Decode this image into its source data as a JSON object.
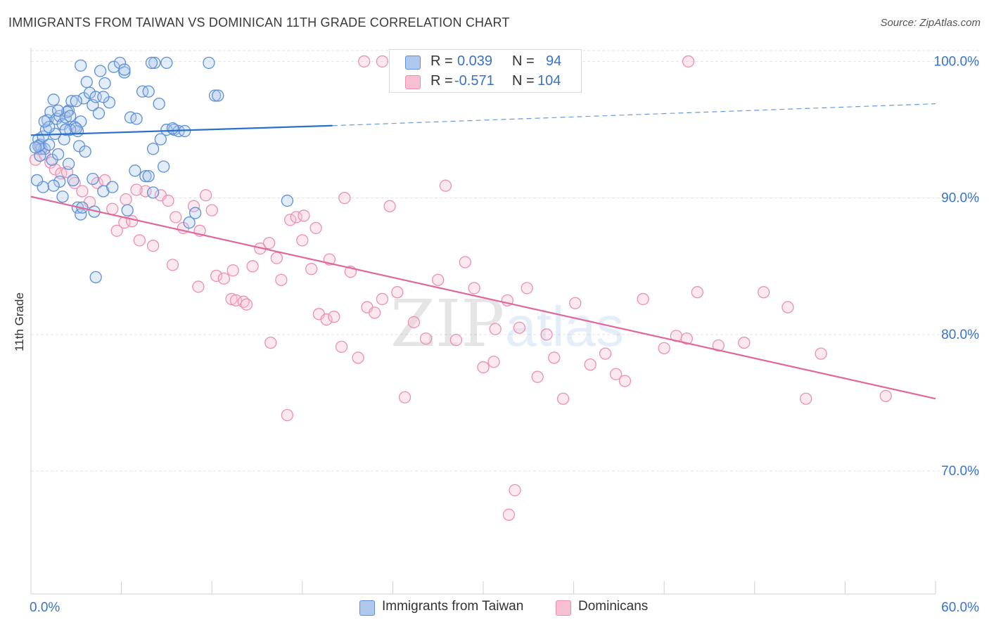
{
  "header": {
    "title": "IMMIGRANTS FROM TAIWAN VS DOMINICAN 11TH GRADE CORRELATION CHART",
    "source": "Source: ZipAtlas.com"
  },
  "legend": {
    "r_label": "R =",
    "n_label": "N =",
    "series": [
      {
        "r": "0.039",
        "n": "94"
      },
      {
        "r": "-0.571",
        "n": "104"
      }
    ]
  },
  "bottom_legend": [
    "Immigrants from Taiwan",
    "Dominicans"
  ],
  "colors": {
    "taiwan_fill": "#aec8ee",
    "taiwan_stroke": "#5b8fd6",
    "taiwan_line": "#2b6fcc",
    "dom_fill": "#f6bfd2",
    "dom_stroke": "#ec8fb0",
    "dom_line": "#e0679a",
    "axis_text": "#3a72c9",
    "grid": "#e4e4e4"
  },
  "watermark": {
    "zip": "ZIP",
    "atlas": "atlas"
  },
  "chart_data": {
    "type": "scatter",
    "title": "IMMIGRANTS FROM TAIWAN VS DOMINICAN 11TH GRADE CORRELATION CHART",
    "xlabel": "",
    "ylabel": "11th Grade",
    "xlim": [
      0,
      60
    ],
    "ylim": [
      61,
      101
    ],
    "x_tick_labels": [
      "0.0%",
      "60.0%"
    ],
    "y_ticks": [
      70,
      80,
      90,
      100
    ],
    "y_tick_labels": [
      "70.0%",
      "80.0%",
      "90.0%",
      "100.0%"
    ],
    "grid": true,
    "series": [
      {
        "name": "Immigrants from Taiwan",
        "R": 0.039,
        "N": 94,
        "trend": {
          "x0": 0,
          "y0": 94.6,
          "x1": 20,
          "y1": 95.3,
          "dash_x1": 60,
          "dash_y1": 96.9
        },
        "points": [
          [
            0.5,
            94.3
          ],
          [
            0.6,
            93.9
          ],
          [
            0.7,
            93.6
          ],
          [
            0.8,
            94.5
          ],
          [
            1.0,
            95.0
          ],
          [
            1.1,
            95.7
          ],
          [
            1.3,
            96.3
          ],
          [
            1.5,
            97.2
          ],
          [
            1.7,
            95.8
          ],
          [
            1.9,
            96.0
          ],
          [
            2.1,
            95.4
          ],
          [
            2.3,
            95.9
          ],
          [
            2.5,
            96.4
          ],
          [
            2.7,
            97.1
          ],
          [
            2.9,
            95.2
          ],
          [
            3.1,
            94.9
          ],
          [
            3.3,
            95.6
          ],
          [
            3.5,
            97.3
          ],
          [
            3.7,
            98.5
          ],
          [
            3.9,
            97.7
          ],
          [
            4.1,
            96.8
          ],
          [
            4.3,
            97.4
          ],
          [
            4.6,
            99.3
          ],
          [
            4.9,
            98.4
          ],
          [
            5.2,
            97.0
          ],
          [
            5.5,
            99.6
          ],
          [
            5.9,
            99.9
          ],
          [
            6.2,
            99.2
          ],
          [
            6.6,
            95.9
          ],
          [
            7.0,
            95.8
          ],
          [
            7.4,
            97.8
          ],
          [
            7.8,
            97.8
          ],
          [
            8.2,
            99.9
          ],
          [
            8.5,
            96.9
          ],
          [
            9.0,
            95.0
          ],
          [
            9.5,
            95.0
          ],
          [
            9.8,
            94.9
          ],
          [
            10.2,
            94.9
          ],
          [
            6.2,
            99.4
          ],
          [
            3.3,
            99.7
          ],
          [
            8.0,
            99.9
          ],
          [
            9.0,
            99.9
          ],
          [
            11.8,
            99.9
          ],
          [
            12.2,
            97.5
          ],
          [
            12.4,
            97.5
          ],
          [
            0.9,
            93.6
          ],
          [
            1.4,
            92.8
          ],
          [
            1.8,
            93.2
          ],
          [
            2.6,
            95.0
          ],
          [
            3.2,
            93.8
          ],
          [
            3.6,
            93.4
          ],
          [
            4.8,
            97.4
          ],
          [
            1.2,
            93.9
          ],
          [
            2.2,
            94.3
          ],
          [
            3.0,
            95.1
          ],
          [
            2.4,
            96.3
          ],
          [
            1.6,
            94.7
          ],
          [
            4.5,
            96.2
          ],
          [
            6.9,
            92.0
          ],
          [
            7.6,
            91.6
          ],
          [
            8.1,
            93.6
          ],
          [
            8.6,
            94.3
          ],
          [
            8.8,
            92.3
          ],
          [
            9.4,
            95.1
          ],
          [
            4.1,
            91.4
          ],
          [
            4.8,
            90.5
          ],
          [
            5.4,
            90.8
          ],
          [
            4.2,
            89.0
          ],
          [
            3.1,
            89.3
          ],
          [
            3.3,
            88.8
          ],
          [
            2.1,
            90.1
          ],
          [
            1.9,
            91.2
          ],
          [
            2.8,
            91.3
          ],
          [
            1.5,
            90.9
          ],
          [
            0.8,
            90.8
          ],
          [
            0.4,
            91.3
          ],
          [
            0.6,
            93.1
          ],
          [
            0.5,
            93.8
          ],
          [
            1.2,
            95.2
          ],
          [
            1.8,
            96.4
          ],
          [
            2.6,
            96.0
          ],
          [
            3.0,
            97.1
          ],
          [
            0.9,
            95.6
          ],
          [
            2.3,
            95.0
          ],
          [
            2.5,
            92.5
          ],
          [
            3.4,
            89.3
          ],
          [
            6.4,
            89.1
          ],
          [
            7.8,
            91.6
          ],
          [
            8.1,
            90.4
          ],
          [
            10.9,
            88.9
          ],
          [
            10.5,
            88.2
          ],
          [
            17.0,
            89.8
          ],
          [
            4.3,
            84.2
          ],
          [
            0.3,
            93.7
          ]
        ]
      },
      {
        "name": "Dominicans",
        "R": -0.571,
        "N": 104,
        "trend": {
          "x0": 0,
          "y0": 90.1,
          "x1": 60,
          "y1": 75.3
        },
        "points": [
          [
            0.3,
            92.8
          ],
          [
            0.6,
            93.6
          ],
          [
            0.9,
            93.2
          ],
          [
            1.3,
            92.6
          ],
          [
            1.6,
            92.1
          ],
          [
            2.0,
            91.8
          ],
          [
            2.4,
            91.9
          ],
          [
            2.9,
            91.1
          ],
          [
            3.4,
            90.5
          ],
          [
            3.9,
            89.7
          ],
          [
            4.4,
            91.1
          ],
          [
            4.9,
            91.3
          ],
          [
            5.4,
            89.2
          ],
          [
            5.7,
            87.6
          ],
          [
            6.2,
            88.2
          ],
          [
            6.7,
            88.3
          ],
          [
            7.2,
            86.9
          ],
          [
            7.6,
            90.5
          ],
          [
            8.1,
            86.5
          ],
          [
            8.6,
            90.2
          ],
          [
            9.1,
            89.8
          ],
          [
            9.6,
            88.6
          ],
          [
            10.1,
            87.8
          ],
          [
            10.8,
            89.4
          ],
          [
            11.2,
            87.6
          ],
          [
            11.6,
            90.2
          ],
          [
            12.0,
            89.1
          ],
          [
            12.3,
            84.3
          ],
          [
            12.8,
            84.1
          ],
          [
            13.3,
            82.6
          ],
          [
            13.6,
            82.5
          ],
          [
            14.1,
            82.4
          ],
          [
            14.7,
            85.0
          ],
          [
            15.2,
            86.3
          ],
          [
            15.8,
            86.7
          ],
          [
            16.3,
            85.6
          ],
          [
            16.6,
            84.0
          ],
          [
            17.2,
            88.4
          ],
          [
            17.6,
            88.6
          ],
          [
            18.1,
            88.7
          ],
          [
            18.6,
            84.8
          ],
          [
            19.1,
            81.5
          ],
          [
            19.6,
            81.1
          ],
          [
            20.1,
            81.3
          ],
          [
            20.6,
            79.1
          ],
          [
            21.2,
            84.6
          ],
          [
            21.7,
            78.3
          ],
          [
            22.3,
            82.0
          ],
          [
            22.8,
            81.6
          ],
          [
            23.3,
            82.6
          ],
          [
            23.8,
            89.4
          ],
          [
            24.3,
            83.1
          ],
          [
            24.8,
            75.4
          ],
          [
            25.4,
            80.9
          ],
          [
            26.2,
            79.7
          ],
          [
            27.0,
            84.0
          ],
          [
            28.2,
            79.6
          ],
          [
            28.8,
            85.3
          ],
          [
            29.4,
            83.4
          ],
          [
            30.0,
            77.6
          ],
          [
            30.7,
            78.0
          ],
          [
            31.6,
            82.5
          ],
          [
            32.4,
            80.5
          ],
          [
            32.9,
            83.4
          ],
          [
            33.6,
            76.9
          ],
          [
            34.2,
            80.0
          ],
          [
            34.7,
            78.3
          ],
          [
            35.3,
            75.3
          ],
          [
            36.1,
            82.3
          ],
          [
            37.1,
            77.8
          ],
          [
            38.1,
            78.6
          ],
          [
            38.8,
            77.1
          ],
          [
            39.4,
            76.6
          ],
          [
            40.6,
            82.6
          ],
          [
            42.0,
            79.0
          ],
          [
            42.8,
            79.9
          ],
          [
            43.5,
            79.7
          ],
          [
            44.2,
            83.1
          ],
          [
            45.6,
            79.2
          ],
          [
            47.3,
            79.4
          ],
          [
            48.6,
            83.1
          ],
          [
            50.2,
            82.0
          ],
          [
            51.4,
            75.3
          ],
          [
            52.4,
            78.6
          ],
          [
            56.7,
            75.5
          ],
          [
            17.0,
            74.1
          ],
          [
            31.7,
            66.8
          ],
          [
            32.1,
            68.6
          ],
          [
            22.1,
            100.0
          ],
          [
            23.3,
            100.0
          ],
          [
            43.6,
            100.0
          ],
          [
            18.0,
            86.9
          ],
          [
            19.8,
            85.5
          ],
          [
            20.8,
            90.0
          ],
          [
            13.4,
            84.7
          ],
          [
            14.3,
            82.2
          ],
          [
            15.9,
            79.4
          ],
          [
            18.9,
            87.8
          ],
          [
            9.4,
            85.1
          ],
          [
            11.1,
            83.5
          ],
          [
            7.0,
            90.6
          ],
          [
            6.3,
            89.9
          ],
          [
            27.5,
            90.9
          ],
          [
            30.8,
            80.4
          ]
        ]
      }
    ]
  }
}
